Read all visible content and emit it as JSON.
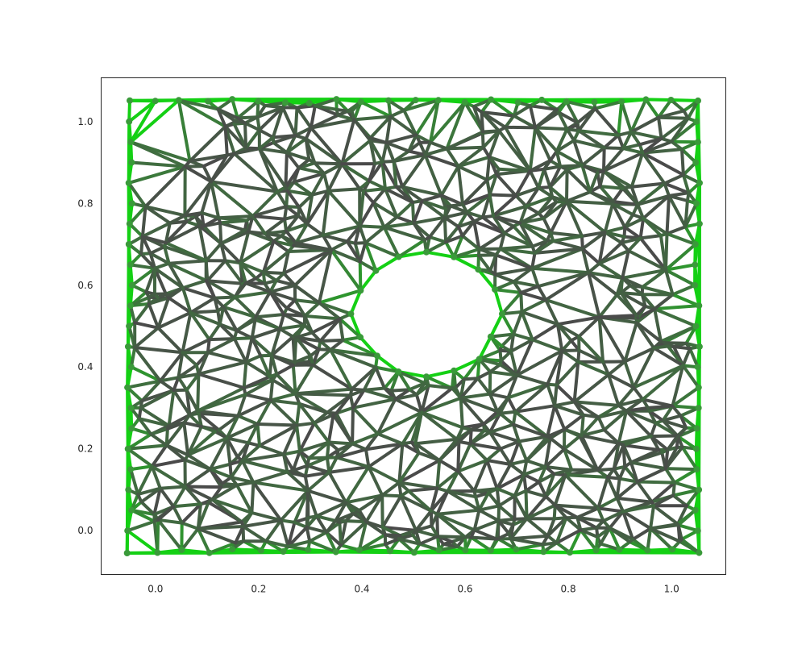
{
  "chart_data": {
    "type": "network",
    "title": "",
    "xlabel": "",
    "ylabel": "",
    "xlim": [
      -0.105,
      1.105
    ],
    "ylim": [
      -0.107,
      1.107
    ],
    "xticks": [
      "0.0",
      "0.2",
      "0.4",
      "0.6",
      "0.8",
      "1.0"
    ],
    "yticks": [
      "0.0",
      "0.2",
      "0.4",
      "0.6",
      "0.8",
      "1.0"
    ],
    "grid": false,
    "legend": "none",
    "domain": {
      "xmin": -0.05,
      "xmax": 1.05,
      "ymin": -0.05,
      "ymax": 1.05
    },
    "hole": {
      "cx": 0.525,
      "cy": 0.53,
      "r": 0.14
    },
    "node_count": 700,
    "colors": {
      "edge_interior": "#4a4a4a",
      "edge_mid": "#3f6f3f",
      "edge_boundary": "#14d014",
      "node": "#3a9a3a",
      "axis": "#262626"
    }
  }
}
